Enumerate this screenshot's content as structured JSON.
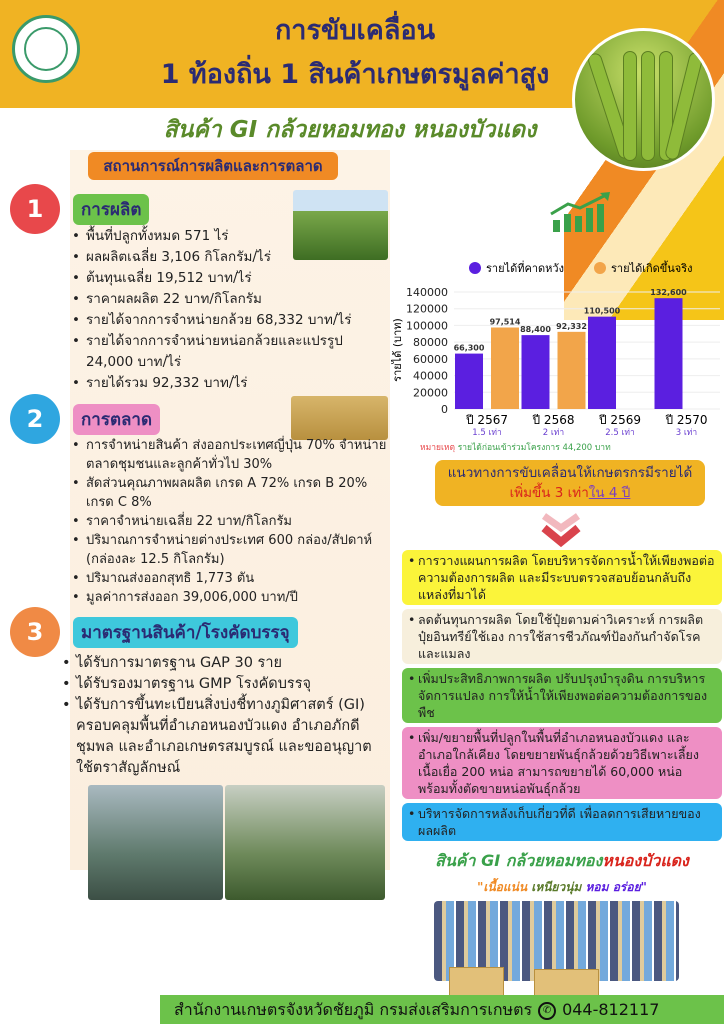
{
  "header": {
    "title_line1": "การขับเคลื่อน",
    "title_line2": "1 ท้องถิ่น 1 สินค้าเกษตรมูลค่าสูง",
    "subtitle": "สินค้า GI กล้วยหอมทอง หนองบัวแดง"
  },
  "situation_label": "สถานการณ์การผลิตและการตลาด",
  "sections": [
    {
      "number": "1",
      "title": "การผลิต",
      "color": "#e8484b",
      "items": [
        "พื้นที่ปลูกทั้งหมด 571 ไร่",
        "ผลผลิตเฉลี่ย 3,106 กิโลกรัม/ไร่",
        "ต้นทุนเฉลี่ย 19,512 บาท/ไร่",
        "ราคาผลผลิต 22 บาท/กิโลกรัม",
        "รายได้จากการจำหน่ายกล้วย 68,332 บาท/ไร่",
        "รายได้จากการจำหน่ายหน่อกล้วยและแปรรูป 24,000 บาท/ไร่",
        "รายได้รวม 92,332 บาท/ไร่"
      ]
    },
    {
      "number": "2",
      "title": "การตลาด",
      "color": "#2fa6e0",
      "items": [
        "การจำหน่ายสินค้า ส่งออกประเทศญี่ปุ่น 70% จำหน่ายตลาดชุมชนและลูกค้าทั่วไป 30%",
        "สัดส่วนคุณภาพผลผลิต เกรด A 72%  เกรด B 20%  เกรด C 8%",
        "ราคาจำหน่ายเฉลี่ย 22 บาท/กิโลกรัม",
        "ปริมาณการจำหน่ายต่างประเทศ 600 กล่อง/สัปดาห์ (กล่องละ 12.5 กิโลกรัม)",
        "ปริมาณส่งออกสุทธิ 1,773 ตัน",
        "มูลค่าการส่งออก 39,006,000 บาท/ปี"
      ]
    },
    {
      "number": "3",
      "title": "มาตรฐานสินค้า/โรงคัดบรรจุ",
      "color": "#f08a45",
      "items": [
        "ได้รับการมาตรฐาน GAP 30 ราย",
        "ได้รับรองมาตรฐาน GMP โรงคัดบรรจุ",
        "ได้รับการขึ้นทะเบียนสิ่งบ่งชี้ทางภูมิศาสตร์ (GI) ครอบคลุมพื้นที่อำเภอหนองบัวแดง อำเภอภักดีชุมพล และอำเภอเกษตรสมบูรณ์ และขออนุญาตใช้ตราสัญลักษณ์"
      ]
    }
  ],
  "chart_data": {
    "type": "bar",
    "categories": [
      "ปี 2567",
      "ปี 2568",
      "ปี 2569",
      "ปี 2570"
    ],
    "category_sublabels": [
      "1.5 เท่า",
      "2 เท่า",
      "2.5 เท่า",
      "3 เท่า"
    ],
    "series": [
      {
        "name": "รายได้ที่คาดหวัง",
        "color": "#5b1fe0",
        "values": [
          66300,
          88400,
          110500,
          132600
        ],
        "labels": [
          "66,300",
          "88,400",
          "110,500",
          "132,600"
        ]
      },
      {
        "name": "รายได้เกิดขึ้นจริง",
        "color": "#f2a54a",
        "values": [
          97514,
          92332,
          null,
          null
        ],
        "labels": [
          "97,514",
          "92,332",
          "",
          ""
        ]
      }
    ],
    "ylabel": "รายได้ (บาท)",
    "ylim": [
      0,
      140000
    ],
    "yticks": [
      "0",
      "20000",
      "40000",
      "60000",
      "80000",
      "100000",
      "120000",
      "140000"
    ],
    "legend": "top",
    "grid": true,
    "note_label": "หมายเหตุ",
    "note": "รายได้ก่อนเข้าร่วมโครงการ 44,200 บาท"
  },
  "guide": {
    "line1": "แนวทางการขับเคลื่อนให้เกษตรกรมีรายได้",
    "line2a": "เพิ่มขึ้น 3 เท่า",
    "line2b": "ใน 4 ปี"
  },
  "strategies": [
    {
      "text": "การวางแผนการผลิต โดยบริหารจัดการน้ำให้เพียงพอต่อความต้องการผลิต และมีระบบตรวจสอบย้อนกลับถึงแหล่งที่มาได้",
      "color": "#fbf43a"
    },
    {
      "text": "ลดต้นทุนการผลิต โดยใช้ปุ๋ยตามค่าวิเคราะห์ การผลิตปุ๋ยอินทรีย์ใช้เอง การใช้สารชีวภัณฑ์ป้องกันกำจัดโรคและแมลง",
      "color": "#f7efdc"
    },
    {
      "text": "เพิ่มประสิทธิภาพการผลิต ปรับปรุงบำรุงดิน การบริหารจัดการแปลง การให้น้ำให้เพียงพอต่อความต้องการของพืช",
      "color": "#6cc24a"
    },
    {
      "text": "เพิ่ม/ขยายพื้นที่ปลูกในพื้นที่อำเภอหนองบัวแดง และอำเภอใกล้เคียง โดยขยายพันธุ์กล้วยด้วยวิธีเพาะเลี้ยงเนื้อเยื่อ 200 หน่อ สามารถขยายได้ 60,000 หน่อ พร้อมทั้งตัดขายหน่อพันธุ์กล้วย",
      "color": "#ee8fc4"
    },
    {
      "text": "บริหารจัดการหลังเก็บเกี่ยวที่ดี เพื่อลดการเสียหายของผลผลิต",
      "color": "#2fb0f0"
    }
  ],
  "promo": {
    "title_a": "สินค้า GI กล้วยหอมทอง",
    "title_b": "หนองบัวแดง",
    "slogan_a": "\"เนื้อแน่น",
    "slogan_b": "เหนียวนุ่ม",
    "slogan_c": "หอม อร่อย\""
  },
  "footer": {
    "org": "สำนักงานเกษตรจังหวัดชัยภูมิ กรมส่งเสริมการเกษตร",
    "phone_icon": "phone-icon",
    "phone": "044-812117"
  }
}
